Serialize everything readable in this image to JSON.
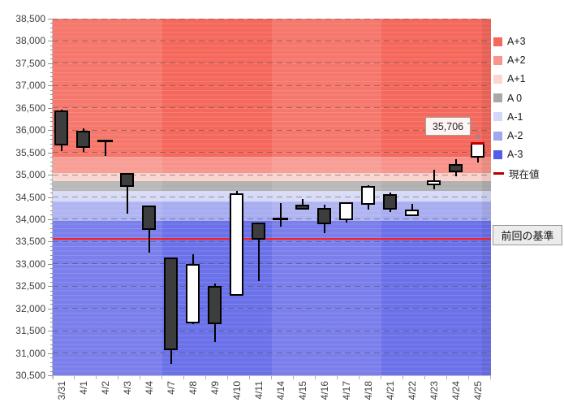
{
  "legend": {
    "items": [
      {
        "label": "A+3",
        "color": "#f4695c",
        "type": "square"
      },
      {
        "label": "A+2",
        "color": "#f8948b",
        "type": "square"
      },
      {
        "label": "A+1",
        "color": "#fbd6d0",
        "type": "square"
      },
      {
        "label": "A 0",
        "color": "#a8a8a8",
        "type": "square"
      },
      {
        "label": "A-1",
        "color": "#d4d7f8",
        "type": "square"
      },
      {
        "label": "A-2",
        "color": "#9fa7f1",
        "type": "square"
      },
      {
        "label": "A-3",
        "color": "#515ee7",
        "type": "square"
      },
      {
        "label": "現在値",
        "color": "#b40000",
        "type": "dash"
      }
    ]
  },
  "chart_data": {
    "type": "candlestick",
    "title": "",
    "y_axis": {
      "min": 30500,
      "max": 38500,
      "step": 500,
      "minor_step": 100,
      "tick_format": "comma"
    },
    "x_labels": [
      "3/31",
      "4/1",
      "4/2",
      "4/3",
      "4/4",
      "4/7",
      "4/8",
      "4/9",
      "4/10",
      "4/11",
      "4/14",
      "4/15",
      "4/16",
      "4/17",
      "4/18",
      "4/21",
      "4/22",
      "4/23",
      "4/24",
      "4/25"
    ],
    "bands": [
      {
        "label": "A+3",
        "from": 35400,
        "to": 38500,
        "color": "#f5685c"
      },
      {
        "label": "A+2",
        "from": 35030,
        "to": 35400,
        "color": "#f7938a"
      },
      {
        "label": "A+1",
        "from": 34850,
        "to": 35030,
        "color": "#fad2cc"
      },
      {
        "label": "A 0",
        "from": 34630,
        "to": 34850,
        "color": "#b0b0b0"
      },
      {
        "label": "A-1",
        "from": 34400,
        "to": 34630,
        "color": "#d6d9f7"
      },
      {
        "label": "A-2",
        "from": 33970,
        "to": 34400,
        "color": "#a7adf0"
      },
      {
        "label": "A-3",
        "from": 30500,
        "to": 33970,
        "color": "#6b71e9"
      }
    ],
    "baseline": {
      "value": 33570,
      "label": "前回の基準",
      "color": "#ff1d1d"
    },
    "current": {
      "value": 35706,
      "label": "35,706",
      "color": "#c00000"
    },
    "candles": [
      {
        "date": "3/31",
        "open": 36440,
        "high": 36450,
        "low": 35530,
        "close": 35650,
        "filled": true
      },
      {
        "date": "4/1",
        "open": 35990,
        "high": 36040,
        "low": 35510,
        "close": 35610,
        "filled": true
      },
      {
        "date": "4/2",
        "open": 35760,
        "high": 35780,
        "low": 35420,
        "close": 35755,
        "filled": true
      },
      {
        "date": "4/3",
        "open": 35030,
        "high": 35040,
        "low": 34130,
        "close": 34730,
        "filled": true
      },
      {
        "date": "4/4",
        "open": 34310,
        "high": 34310,
        "low": 33250,
        "close": 33760,
        "filled": true
      },
      {
        "date": "4/7",
        "open": 33150,
        "high": 33150,
        "low": 30750,
        "close": 31070,
        "filled": true
      },
      {
        "date": "4/8",
        "open": 31670,
        "high": 33220,
        "low": 31650,
        "close": 33000,
        "filled": false
      },
      {
        "date": "4/9",
        "open": 32510,
        "high": 32560,
        "low": 31250,
        "close": 31650,
        "filled": true
      },
      {
        "date": "4/10",
        "open": 32290,
        "high": 34630,
        "low": 32280,
        "close": 34590,
        "filled": false
      },
      {
        "date": "4/11",
        "open": 33930,
        "high": 33930,
        "low": 32620,
        "close": 33540,
        "filled": true
      },
      {
        "date": "4/14",
        "open": 34010,
        "high": 34360,
        "low": 33830,
        "close": 33990,
        "filled": true
      },
      {
        "date": "4/15",
        "open": 34330,
        "high": 34460,
        "low": 34220,
        "close": 34220,
        "filled": true
      },
      {
        "date": "4/16",
        "open": 34250,
        "high": 34330,
        "low": 33680,
        "close": 33890,
        "filled": true
      },
      {
        "date": "4/17",
        "open": 33980,
        "high": 34380,
        "low": 33920,
        "close": 34380,
        "filled": false
      },
      {
        "date": "4/18",
        "open": 34320,
        "high": 34770,
        "low": 34210,
        "close": 34740,
        "filled": false
      },
      {
        "date": "4/21",
        "open": 34560,
        "high": 34600,
        "low": 34160,
        "close": 34210,
        "filled": true
      },
      {
        "date": "4/22",
        "open": 34080,
        "high": 34340,
        "low": 34080,
        "close": 34220,
        "filled": false
      },
      {
        "date": "4/23",
        "open": 34760,
        "high": 35110,
        "low": 34680,
        "close": 34880,
        "filled": false
      },
      {
        "date": "4/24",
        "open": 35240,
        "high": 35340,
        "low": 34970,
        "close": 35050,
        "filled": true
      },
      {
        "date": "4/25",
        "open": 35390,
        "high": 35706,
        "low": 35280,
        "close": 35706,
        "filled": false
      }
    ]
  }
}
